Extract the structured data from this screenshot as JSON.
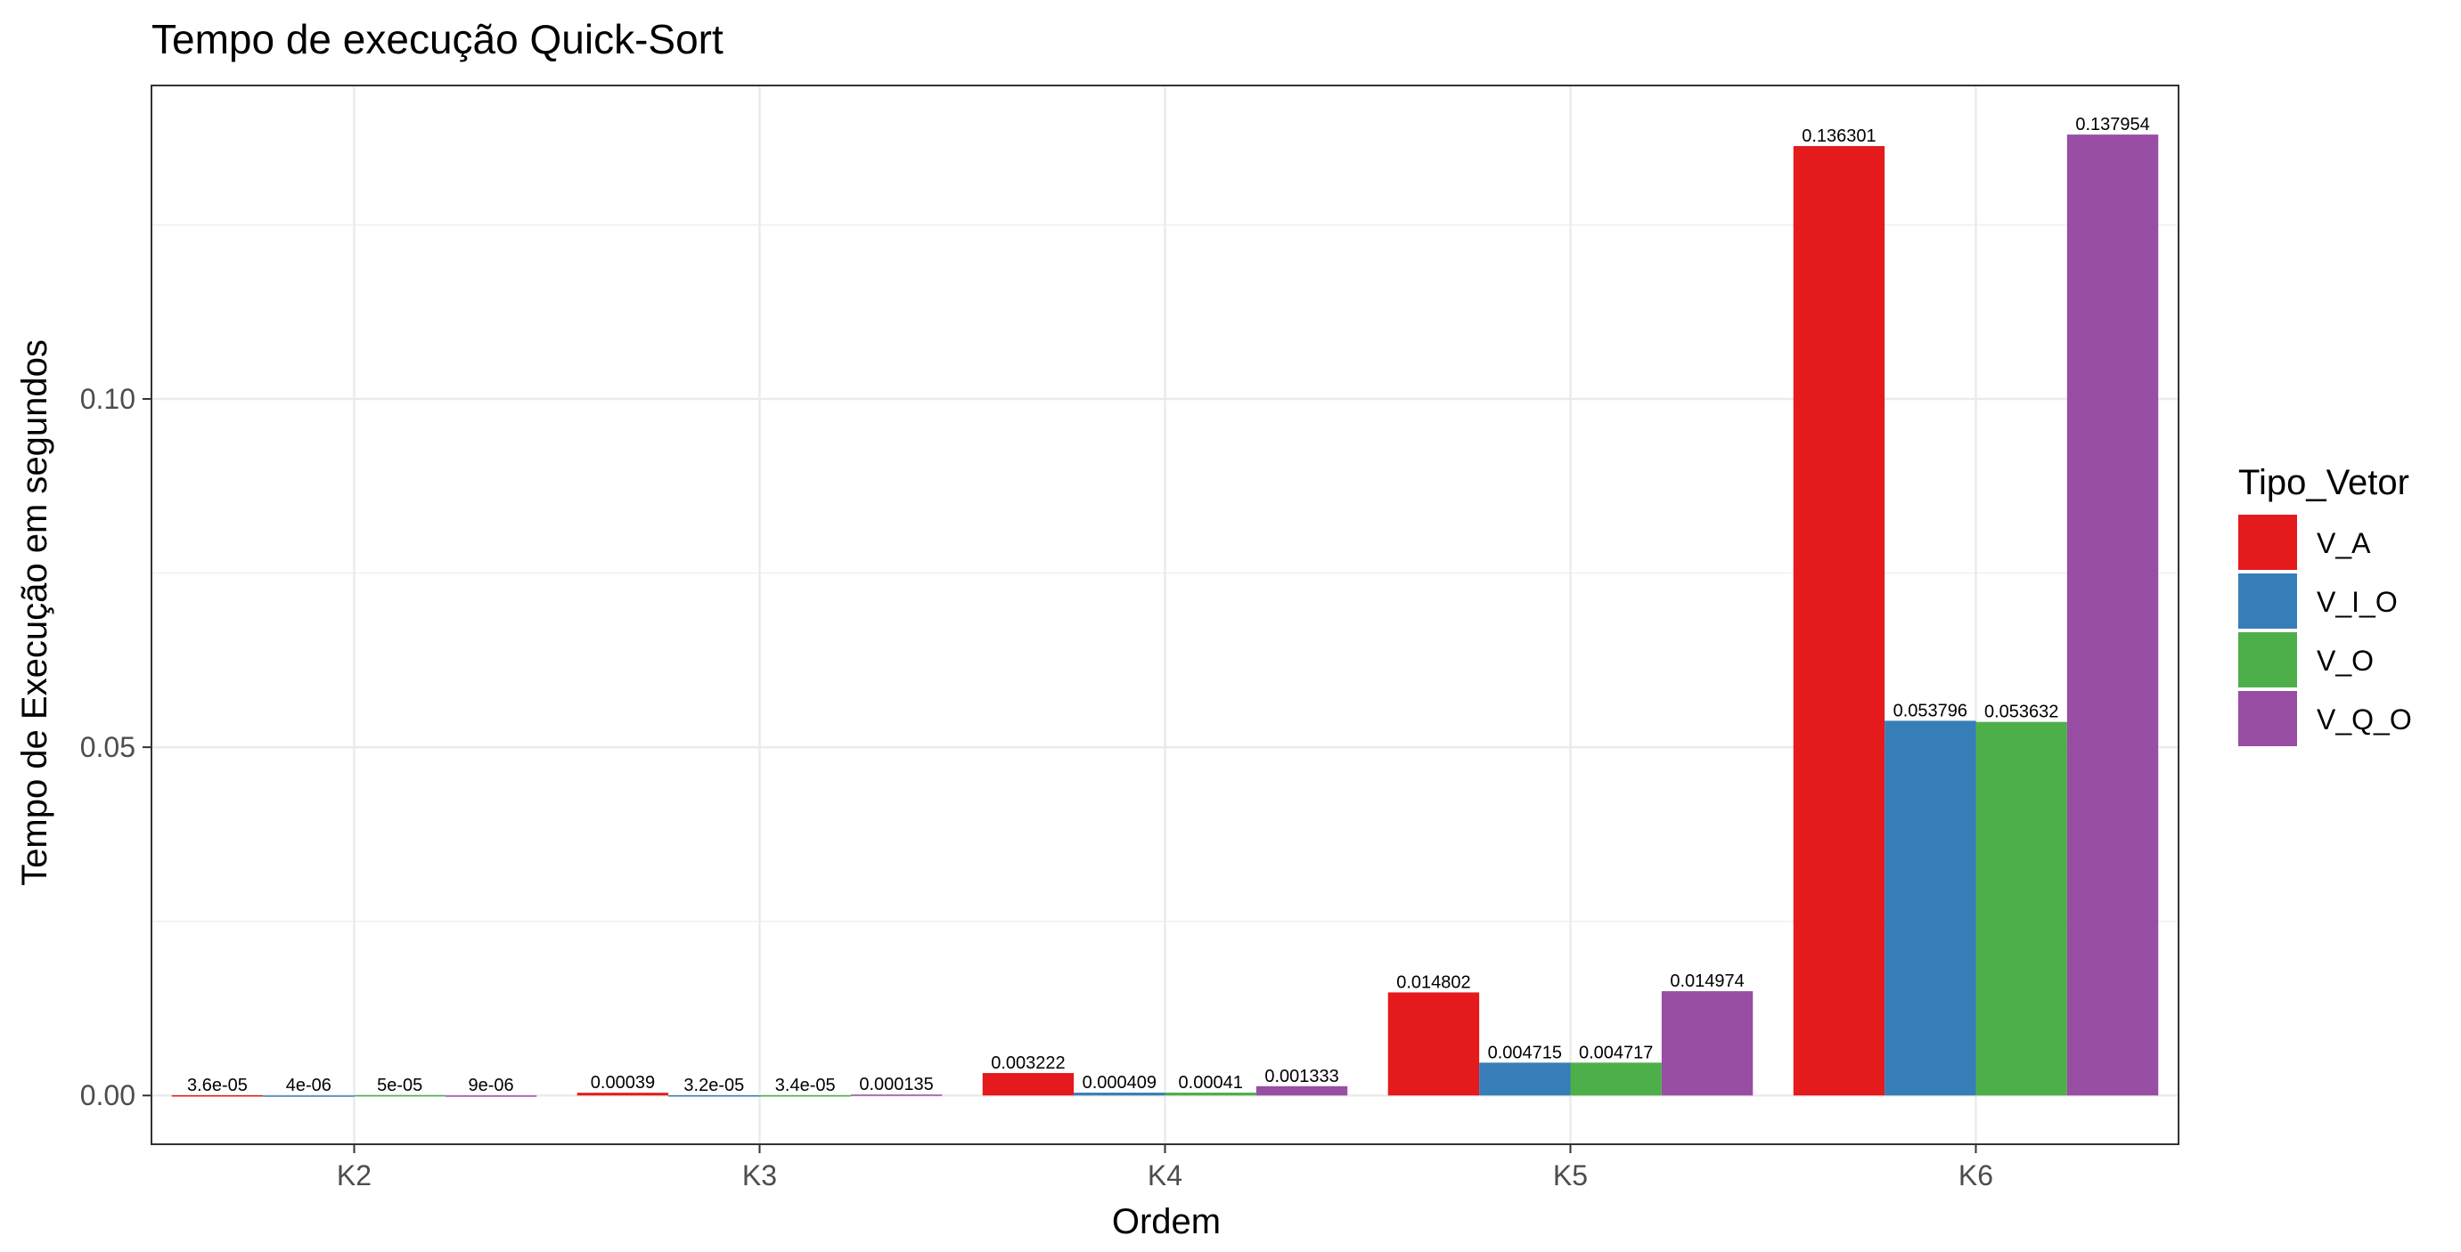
{
  "chart_data": {
    "type": "bar",
    "title": "Tempo de execução Quick-Sort",
    "xlabel": "Ordem",
    "ylabel": "Tempo de Execução em segundos",
    "categories": [
      "K2",
      "K3",
      "K4",
      "K5",
      "K6"
    ],
    "series": [
      {
        "name": "V_A",
        "color": "#e41a1c",
        "values": [
          3.6e-05,
          0.00039,
          0.003222,
          0.014802,
          0.136301
        ],
        "labels": [
          "3.6e-05",
          "0.00039",
          "0.003222",
          "0.014802",
          "0.136301"
        ]
      },
      {
        "name": "V_I_O",
        "color": "#377eb8",
        "values": [
          4e-06,
          3.2e-05,
          0.000409,
          0.004715,
          0.053796
        ],
        "labels": [
          "4e-06",
          "3.2e-05",
          "0.000409",
          "0.004715",
          "0.053796"
        ]
      },
      {
        "name": "V_O",
        "color": "#4daf4a",
        "values": [
          5e-05,
          3.4e-05,
          0.00041,
          0.004717,
          0.053632
        ],
        "labels": [
          "5e-05",
          "3.4e-05",
          "0.00041",
          "0.004717",
          "0.053632"
        ]
      },
      {
        "name": "V_Q_O",
        "color": "#984ea3",
        "values": [
          9e-06,
          0.000135,
          0.001333,
          0.014974,
          0.137954
        ],
        "labels": [
          "9e-06",
          "0.000135",
          "0.001333",
          "0.014974",
          "0.137954"
        ]
      }
    ],
    "ylim": [
      -0.007,
      0.145
    ],
    "yticks": [
      0,
      0.05,
      0.1
    ],
    "ytick_labels": [
      "0.00",
      "0.05",
      "0.10"
    ],
    "grid": true,
    "legend": {
      "title": "Tipo_Vetor",
      "position": "right"
    }
  }
}
